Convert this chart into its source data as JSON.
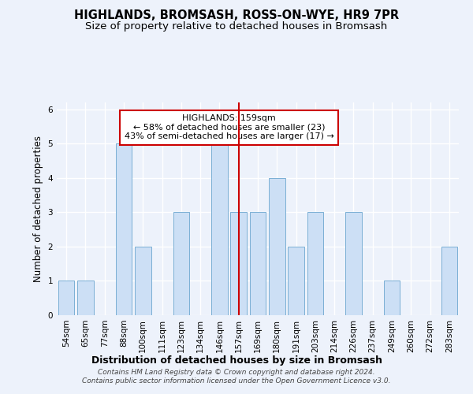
{
  "title": "HIGHLANDS, BROMSASH, ROSS-ON-WYE, HR9 7PR",
  "subtitle": "Size of property relative to detached houses in Bromsash",
  "xlabel": "Distribution of detached houses by size in Bromsash",
  "ylabel": "Number of detached properties",
  "categories": [
    "54sqm",
    "65sqm",
    "77sqm",
    "88sqm",
    "100sqm",
    "111sqm",
    "123sqm",
    "134sqm",
    "146sqm",
    "157sqm",
    "169sqm",
    "180sqm",
    "191sqm",
    "203sqm",
    "214sqm",
    "226sqm",
    "237sqm",
    "249sqm",
    "260sqm",
    "272sqm",
    "283sqm"
  ],
  "values": [
    1,
    1,
    0,
    5,
    2,
    0,
    3,
    0,
    5,
    3,
    3,
    4,
    2,
    3,
    0,
    3,
    0,
    1,
    0,
    0,
    2
  ],
  "bar_color": "#ccdff5",
  "bar_edge_color": "#7aafd4",
  "highlight_index": 9,
  "highlight_line_color": "#cc0000",
  "annotation_text": "HIGHLANDS: 159sqm\n← 58% of detached houses are smaller (23)\n43% of semi-detached houses are larger (17) →",
  "annotation_box_edge_color": "#cc0000",
  "ylim": [
    0,
    6.2
  ],
  "yticks": [
    0,
    1,
    2,
    3,
    4,
    5,
    6
  ],
  "background_color": "#edf2fb",
  "footer_text": "Contains HM Land Registry data © Crown copyright and database right 2024.\nContains public sector information licensed under the Open Government Licence v3.0.",
  "title_fontsize": 10.5,
  "subtitle_fontsize": 9.5,
  "xlabel_fontsize": 9,
  "ylabel_fontsize": 8.5,
  "tick_fontsize": 7.5,
  "annotation_fontsize": 8,
  "footer_fontsize": 6.5
}
